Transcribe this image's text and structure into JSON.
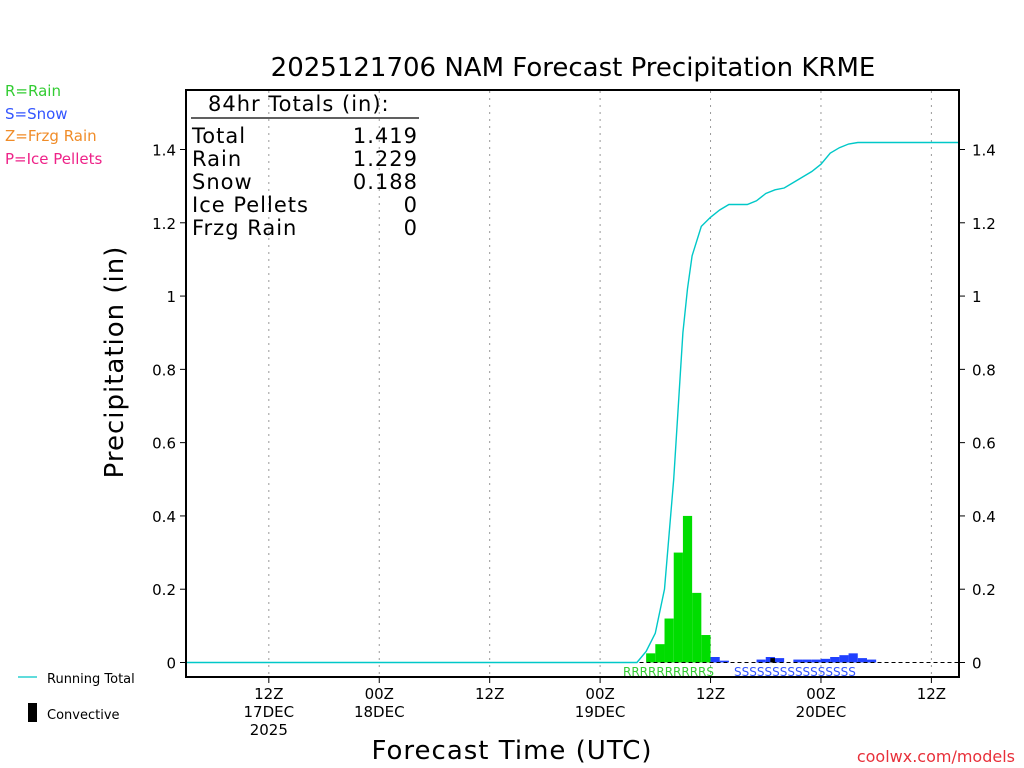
{
  "chart_data": {
    "type": "bar",
    "title": "2025121706 NAM Forecast Precipitation KRME",
    "xlabel": "Forecast Time (UTC)",
    "ylabel": "Precipitation (in)",
    "ylim": [
      0,
      1.5
    ],
    "y_ticks": [
      "0",
      "0.2",
      "0.4",
      "0.6",
      "0.8",
      "1",
      "1.2",
      "1.4"
    ],
    "y_tick_values": [
      0,
      0.2,
      0.4,
      0.6,
      0.8,
      1.0,
      1.2,
      1.4
    ],
    "x_range_hours": [
      -3,
      81
    ],
    "x_ticks": [
      {
        "hour": 6,
        "line1": "12Z",
        "line2": "17DEC",
        "line3": "2025"
      },
      {
        "hour": 18,
        "line1": "00Z",
        "line2": "18DEC",
        "line3": ""
      },
      {
        "hour": 30,
        "line1": "12Z",
        "line2": "",
        "line3": ""
      },
      {
        "hour": 42,
        "line1": "00Z",
        "line2": "19DEC",
        "line3": ""
      },
      {
        "hour": 54,
        "line1": "12Z",
        "line2": "",
        "line3": ""
      },
      {
        "hour": 66,
        "line1": "00Z",
        "line2": "20DEC",
        "line3": ""
      },
      {
        "hour": 78,
        "line1": "12Z",
        "line2": "",
        "line3": ""
      }
    ],
    "bar_hour_width": 1,
    "series": [
      {
        "name": "Rain",
        "color": "#00dd00",
        "hours": [
          47,
          48,
          49,
          50,
          51,
          52,
          53
        ],
        "values": [
          0.025,
          0.05,
          0.12,
          0.3,
          0.4,
          0.19,
          0.075
        ]
      },
      {
        "name": "Snow",
        "color": "#2040ff",
        "hours": [
          54,
          55,
          59,
          60,
          61,
          63,
          64,
          65,
          66,
          67,
          68,
          69,
          70,
          71
        ],
        "values": [
          0.015,
          0.005,
          0.008,
          0.015,
          0.012,
          0.008,
          0.008,
          0.008,
          0.01,
          0.015,
          0.02,
          0.025,
          0.012,
          0.008
        ]
      },
      {
        "name": "Convective",
        "color": "#000000",
        "hours": [
          60.5
        ],
        "values": [
          0.012
        ]
      }
    ],
    "running_total": {
      "name": "Running Total",
      "color": "#00c8c8",
      "hours": [
        -3,
        46,
        47,
        48,
        49,
        50,
        51,
        51.5,
        52,
        53,
        54,
        55,
        56,
        57,
        58,
        59,
        60,
        61,
        62,
        63,
        64,
        65,
        66,
        67,
        68,
        69,
        70,
        71,
        72,
        73,
        81
      ],
      "values": [
        0,
        0,
        0.03,
        0.08,
        0.2,
        0.5,
        0.9,
        1.02,
        1.11,
        1.19,
        1.215,
        1.235,
        1.25,
        1.25,
        1.25,
        1.26,
        1.28,
        1.29,
        1.295,
        1.31,
        1.325,
        1.34,
        1.36,
        1.39,
        1.405,
        1.415,
        1.419,
        1.419,
        1.419,
        1.419,
        1.419
      ]
    },
    "ptype_labels": {
      "rain": "RRRRRRRRRRS",
      "snow": "SSSSSSSSSSSSSSSS"
    }
  },
  "legend": {
    "rain": {
      "text": "R=Rain",
      "color": "#33cc33"
    },
    "snow": {
      "text": "S=Snow",
      "color": "#3355ff"
    },
    "frzg_rain": {
      "text": "Z=Frzg Rain",
      "color": "#f08c28"
    },
    "ice_pellets": {
      "text": "P=Ice Pellets",
      "color": "#ee2288"
    },
    "running_total": "Running Total",
    "convective": "Convective"
  },
  "totals": {
    "header": "84hr Totals (in):",
    "rows": [
      {
        "label": "Total",
        "value": "1.419"
      },
      {
        "label": "Rain",
        "value": "1.229"
      },
      {
        "label": "Snow",
        "value": "0.188"
      },
      {
        "label": "Ice Pellets",
        "value": "0"
      },
      {
        "label": "Frzg Rain",
        "value": "0"
      }
    ]
  },
  "credit": "coolwx.com/models"
}
